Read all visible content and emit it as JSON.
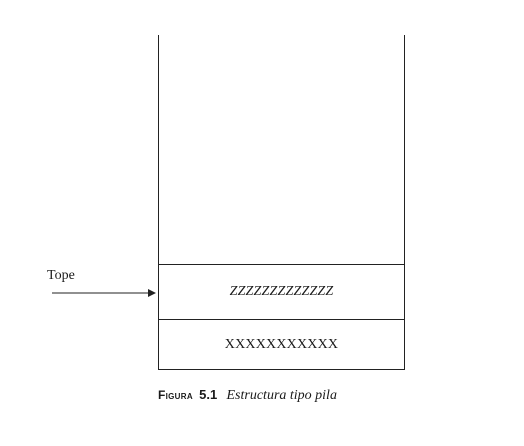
{
  "stack": {
    "top_item": "ZZZZZZZZZZZZZ",
    "bottom_item": "XXXXXXXXXXX"
  },
  "pointer": {
    "label": "Tope"
  },
  "caption": {
    "label": "Figura",
    "number": "5.1",
    "text": "Estructura tipo pila"
  }
}
